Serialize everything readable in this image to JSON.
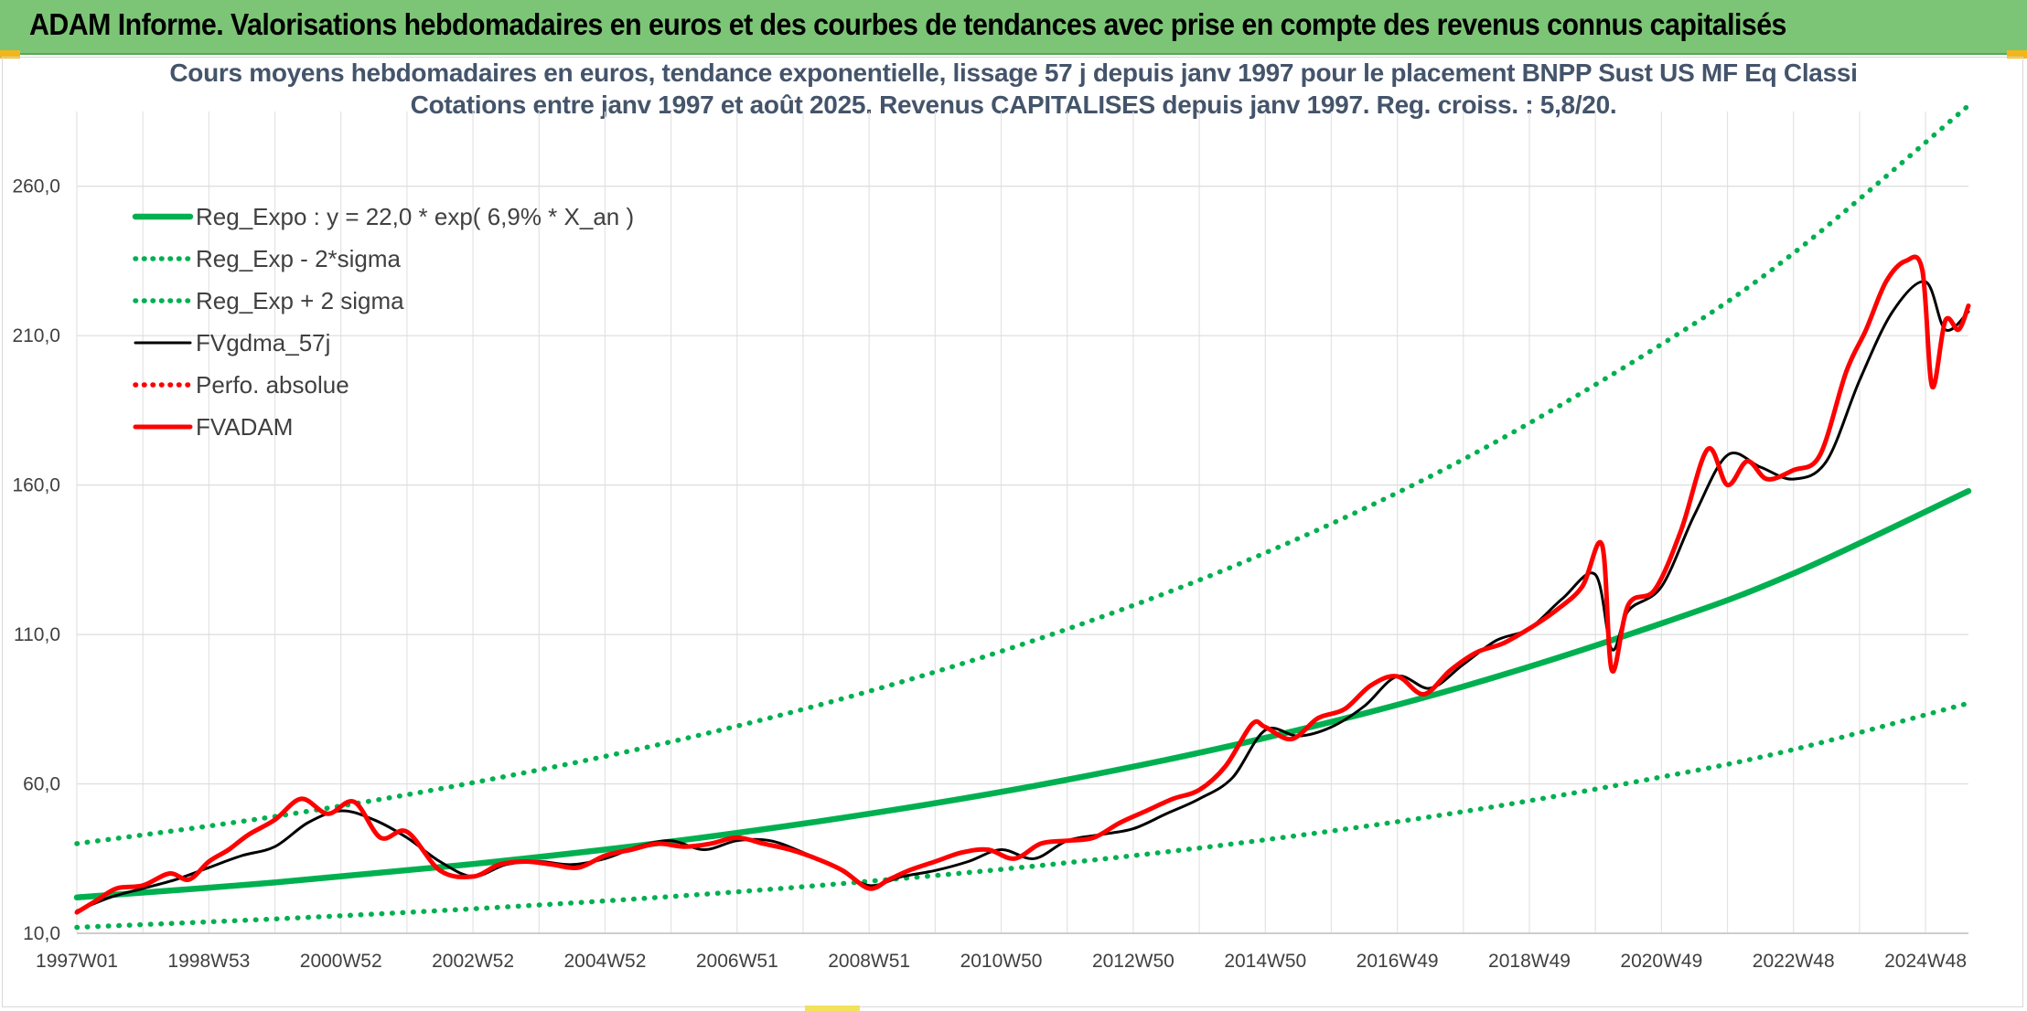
{
  "banner": {
    "title": "ADAM Informe. Valorisations hebdomadaires en euros et des courbes de tendances avec prise en compte des revenus connus capitalisés"
  },
  "colors": {
    "banner_bg": "#7cc576",
    "trend": "#00b050",
    "price": "#ff0000",
    "smoothed": "#000000",
    "title_text": "#44546a"
  },
  "chart_data": {
    "type": "line",
    "title": "Cours moyens hebdomadaires en euros, tendance exponentielle, lissage 57 j depuis janv 1997 pour le placement BNPP Sust US MF Eq Classi",
    "subtitle": "Cotations entre janv 1997 et août 2025. Revenus CAPITALISES depuis janv 1997. Reg. croiss. : 5,8/20.",
    "xlabel": "",
    "ylabel": "",
    "ylim": [
      10,
      285
    ],
    "yticks": [
      10,
      60,
      110,
      160,
      210,
      260
    ],
    "ytick_labels": [
      "10,0",
      "60,0",
      "110,0",
      "160,0",
      "210,0",
      "260,0"
    ],
    "xlim": [
      1997.0,
      2025.65
    ],
    "xticks": [
      1997.0,
      1999.0,
      2001.0,
      2003.0,
      2005.0,
      2007.0,
      2009.0,
      2011.0,
      2013.0,
      2015.0,
      2017.0,
      2019.0,
      2021.0,
      2023.0,
      2025.0
    ],
    "xtick_labels": [
      "1997W01",
      "1998W53",
      "2000W52",
      "2002W52",
      "2004W52",
      "2006W51",
      "2008W51",
      "2010W50",
      "2012W50",
      "2014W50",
      "2016W49",
      "2018W49",
      "2020W49",
      "2022W48",
      "2024W48"
    ],
    "grid": true,
    "legend_position": "top-left",
    "series": [
      {
        "name": "Reg_Expo : y = 22,0 * exp( 6,9% *  X_an )",
        "style": "solid-thick",
        "color": "#00b050",
        "x": [
          1997.0,
          2000.0,
          2003.0,
          2006.0,
          2009.0,
          2012.0,
          2015.0,
          2018.0,
          2021.0,
          2023.0,
          2025.65
        ],
        "values": [
          22.0,
          27.0,
          33.2,
          40.7,
          50.0,
          61.4,
          75.4,
          92.6,
          113.7,
          130.4,
          158.0
        ]
      },
      {
        "name": "Reg_Exp - 2*sigma",
        "style": "dotted",
        "color": "#00b050",
        "x": [
          1997.0,
          2000.0,
          2003.0,
          2006.0,
          2009.0,
          2012.0,
          2015.0,
          2018.0,
          2021.0,
          2023.0,
          2025.65
        ],
        "values": [
          12.0,
          14.8,
          18.2,
          22.3,
          27.4,
          33.6,
          41.3,
          50.7,
          62.3,
          71.5,
          87.0
        ]
      },
      {
        "name": "Reg_Exp + 2 sigma",
        "style": "dotted",
        "color": "#00b050",
        "x": [
          1997.0,
          2000.0,
          2003.0,
          2006.0,
          2009.0,
          2012.0,
          2015.0,
          2018.0,
          2021.0,
          2023.0,
          2025.65
        ],
        "values": [
          40.0,
          49.1,
          60.4,
          74.1,
          91.0,
          111.8,
          137.3,
          168.6,
          207.1,
          237.6,
          287.0
        ]
      },
      {
        "name": "FVgdma_57j",
        "style": "solid",
        "color": "#000000",
        "x": [
          1997.0,
          1997.5,
          1998.0,
          1998.5,
          1999.0,
          1999.5,
          2000.0,
          2000.5,
          2001.0,
          2001.5,
          2002.0,
          2002.5,
          2003.0,
          2003.5,
          2004.0,
          2004.5,
          2005.0,
          2005.5,
          2006.0,
          2006.5,
          2007.0,
          2007.5,
          2008.0,
          2008.5,
          2009.0,
          2009.5,
          2010.0,
          2010.5,
          2011.0,
          2011.5,
          2012.0,
          2012.5,
          2013.0,
          2013.5,
          2014.0,
          2014.5,
          2015.0,
          2015.5,
          2016.0,
          2016.5,
          2017.0,
          2017.5,
          2018.0,
          2018.5,
          2019.0,
          2019.5,
          2020.0,
          2020.25,
          2020.5,
          2021.0,
          2021.5,
          2022.0,
          2022.5,
          2023.0,
          2023.5,
          2024.0,
          2024.5,
          2025.0,
          2025.3,
          2025.65
        ],
        "values": [
          17.5,
          22,
          25,
          28,
          32,
          36,
          39,
          47,
          51,
          48,
          42,
          34,
          29,
          33,
          34,
          33,
          35,
          39,
          41,
          38,
          41,
          41,
          37,
          32,
          26,
          29,
          31,
          34,
          38,
          35,
          41,
          43,
          45,
          50,
          55,
          62,
          78,
          76,
          79,
          86,
          96,
          92,
          100,
          108,
          112,
          122,
          130,
          105,
          118,
          126,
          150,
          170,
          166,
          162,
          168,
          195,
          218,
          228,
          212,
          218
        ]
      },
      {
        "name": "Perfo. absolue",
        "style": "dotted",
        "color": "#ff0000",
        "x": [],
        "values": []
      },
      {
        "name": "FVADAM",
        "style": "solid-thick",
        "color": "#ff0000",
        "x": [
          1997.0,
          1997.3,
          1997.6,
          1998.0,
          1998.4,
          1998.7,
          1999.0,
          1999.3,
          1999.6,
          2000.0,
          2000.4,
          2000.8,
          2001.2,
          2001.6,
          2002.0,
          2002.5,
          2003.0,
          2003.4,
          2003.8,
          2004.2,
          2004.6,
          2005.0,
          2005.4,
          2005.8,
          2006.2,
          2006.6,
          2007.0,
          2007.4,
          2007.8,
          2008.2,
          2008.6,
          2009.0,
          2009.3,
          2009.6,
          2010.0,
          2010.4,
          2010.8,
          2011.2,
          2011.6,
          2012.0,
          2012.4,
          2012.8,
          2013.2,
          2013.6,
          2014.0,
          2014.4,
          2014.8,
          2015.0,
          2015.4,
          2015.8,
          2016.2,
          2016.6,
          2017.0,
          2017.4,
          2017.8,
          2018.2,
          2018.6,
          2019.0,
          2019.4,
          2019.8,
          2020.1,
          2020.25,
          2020.5,
          2020.9,
          2021.3,
          2021.7,
          2022.0,
          2022.3,
          2022.6,
          2023.0,
          2023.4,
          2023.8,
          2024.1,
          2024.4,
          2024.7,
          2024.95,
          2025.1,
          2025.3,
          2025.5,
          2025.65
        ],
        "values": [
          17.0,
          21,
          25,
          26,
          30,
          28,
          34,
          38,
          43,
          48,
          55,
          50,
          54,
          42,
          44,
          31,
          29,
          33,
          34,
          33,
          32,
          36,
          38,
          40,
          39,
          40,
          42,
          40,
          38,
          35,
          31,
          25,
          28,
          31,
          34,
          37,
          38,
          35,
          40,
          41,
          42,
          47,
          51,
          55,
          58,
          66,
          80,
          79,
          75,
          82,
          85,
          93,
          96,
          90,
          98,
          104,
          107,
          112,
          118,
          126,
          140,
          98,
          120,
          125,
          145,
          172,
          160,
          168,
          162,
          165,
          170,
          198,
          212,
          228,
          235,
          232,
          193,
          215,
          212,
          220
        ]
      }
    ]
  }
}
